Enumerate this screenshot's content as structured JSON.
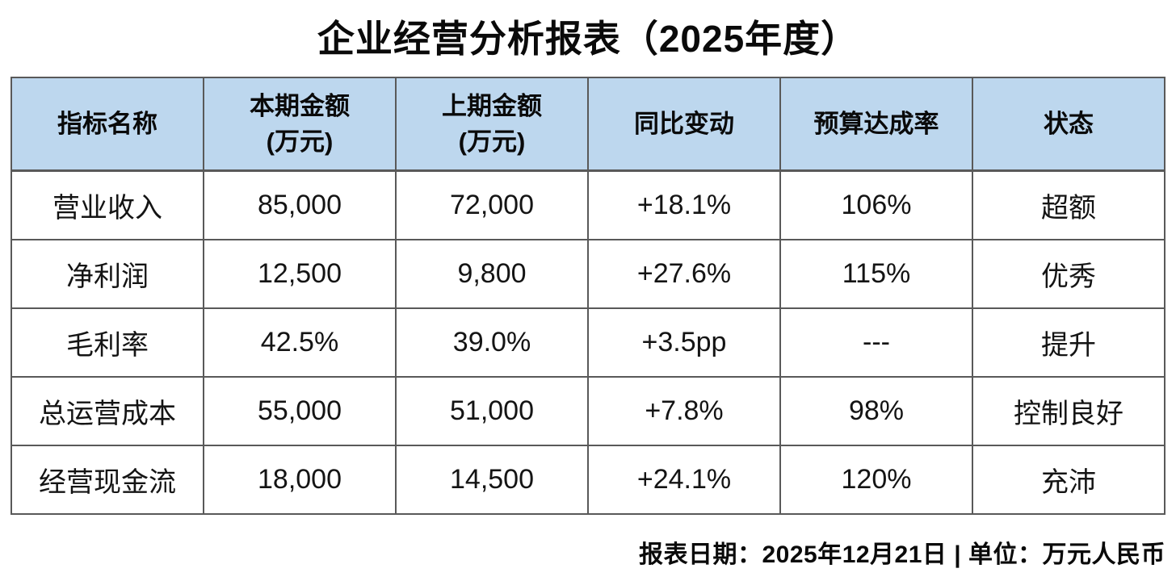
{
  "title": "企业经营分析报表（2025年度）",
  "table": {
    "headers": [
      "指标名称",
      "本期金额\n(万元)",
      "上期金额\n(万元)",
      "同比变动",
      "预算达成率",
      "状态"
    ],
    "rows": [
      [
        "营业收入",
        "85,000",
        "72,000",
        "+18.1%",
        "106%",
        "超额"
      ],
      [
        "净利润",
        "12,500",
        "9,800",
        "+27.6%",
        "115%",
        "优秀"
      ],
      [
        "毛利率",
        "42.5%",
        "39.0%",
        "+3.5pp",
        "---",
        "提升"
      ],
      [
        "总运营成本",
        "55,000",
        "51,000",
        "+7.8%",
        "98%",
        "控制良好"
      ],
      [
        "经营现金流",
        "18,000",
        "14,500",
        "+24.1%",
        "120%",
        "充沛"
      ]
    ]
  },
  "footer": {
    "text": "报表日期：2025年12月21日 | 单位：万元人民币"
  },
  "colors": {
    "header_bg": "#BDD7EE",
    "border": "#595959",
    "text": "#111111",
    "background": "#FFFFFF"
  }
}
